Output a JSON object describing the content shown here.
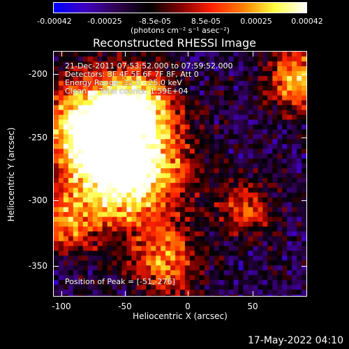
{
  "colorbar": {
    "tick_labels": [
      "-0.00042",
      "-0.00025",
      "-8.5e-05",
      "8.5e-05",
      "0.00025",
      "0.00042"
    ],
    "units_label": "(photons cm⁻² s⁻¹ asec⁻²)"
  },
  "title": "Reconstructed RHESSI Image",
  "info": {
    "time_range": "21-Dec-2011 07:53:52.000 to 07:59:52.000",
    "detectors": "Detectors: 3F 4F 5F 6F 7F 8F, Att 0",
    "energy_range": "Energy Range: 12.0 - 25.0 keV",
    "clean_counts": "Clean     Total counts: 1.59E+04",
    "peak_position": "Position of Peak = [-51,-276]"
  },
  "axes": {
    "xlabel": "Heliocentric X (arcsec)",
    "ylabel": "Heliocentric Y (arcsec)",
    "xticks": [
      "-100",
      "-50",
      "0",
      "50"
    ],
    "yticks": [
      "-200",
      "-250",
      "-300",
      "-350"
    ]
  },
  "footer_timestamp": "17-May-2022 04:10",
  "colors": {
    "background": "#000000",
    "frame": "#ffffff",
    "cmap": [
      "#0000ff",
      "#4000c0",
      "#300050",
      "#000000",
      "#800000",
      "#ff2000",
      "#ff8000",
      "#ffff40",
      "#ffffff"
    ]
  },
  "chart_data": {
    "type": "heatmap",
    "title": "Reconstructed RHESSI Image",
    "xlabel": "Heliocentric X (arcsec)",
    "ylabel": "Heliocentric Y (arcsec)",
    "xlim": [
      -104,
      86
    ],
    "ylim": [
      -376,
      -188
    ],
    "zlim": [
      -0.00042,
      0.00042
    ],
    "peak": [
      -51,
      -276
    ],
    "colorbar_label": "(photons cm⁻² s⁻¹ asec⁻²)"
  }
}
